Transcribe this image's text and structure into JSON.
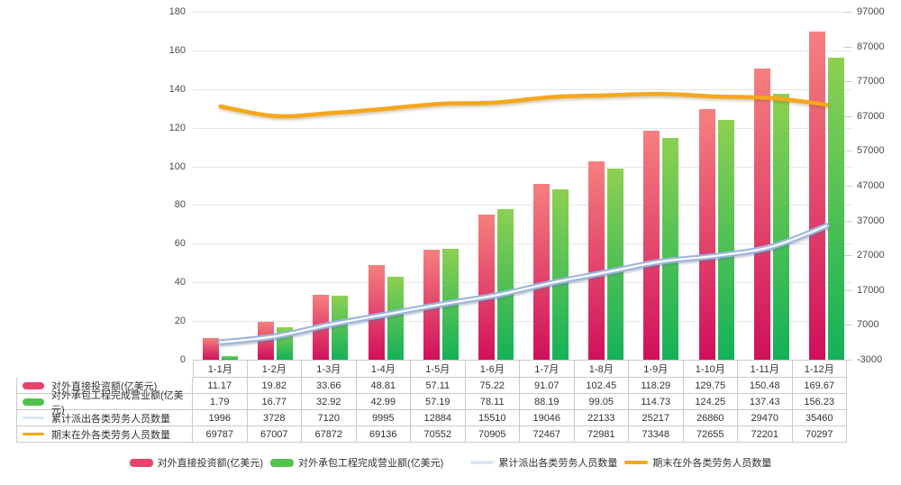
{
  "chart_data": {
    "type": "combo-bar-line",
    "categories": [
      "1-1月",
      "1-2月",
      "1-3月",
      "1-4月",
      "1-5月",
      "1-6月",
      "1-7月",
      "1-8月",
      "1-9月",
      "1-10月",
      "1-11月",
      "1-12月"
    ],
    "series": [
      {
        "name": "对外直接投资额(亿美元)",
        "type": "bar",
        "axis": "left",
        "decimals": 2,
        "values": [
          11.17,
          19.82,
          33.66,
          48.81,
          57.11,
          75.22,
          91.07,
          102.45,
          118.29,
          129.75,
          150.48,
          169.67
        ],
        "color_top": "#f5807f",
        "color_bottom": "#d0105a",
        "swatch": "#e8426d",
        "dataname": "direct-investment-bar"
      },
      {
        "name": "对外承包工程完成营业额(亿美元)",
        "type": "bar",
        "axis": "left",
        "decimals": 2,
        "values": [
          1.79,
          16.77,
          32.92,
          42.99,
          57.19,
          78.11,
          88.19,
          99.05,
          114.73,
          124.25,
          137.43,
          156.23
        ],
        "color_top": "#8ed052",
        "color_bottom": "#14b158",
        "swatch": "#52c24f",
        "dataname": "contract-revenue-bar"
      },
      {
        "name": "累计派出各类劳务人员数量",
        "type": "line",
        "axis": "right",
        "decimals": 0,
        "values": [
          1996,
          3728,
          7120,
          9995,
          12884,
          15510,
          19046,
          22133,
          25217,
          26860,
          29470,
          35460
        ],
        "color": "#9cb6e0",
        "core": "#ffffff",
        "swatch": "#dbe6f6",
        "dataname": "dispatched-workers-line"
      },
      {
        "name": "期末在外各类劳务人员数量",
        "type": "line",
        "axis": "right",
        "decimals": 0,
        "values": [
          69787,
          67007,
          67872,
          69136,
          70552,
          70905,
          72467,
          72981,
          73348,
          72655,
          72201,
          70297
        ],
        "color": "#f6a71b",
        "swatch": "#f6a71b",
        "dataname": "overseas-workers-line"
      }
    ],
    "left_axis": {
      "min": 0,
      "max": 180,
      "step": 20
    },
    "right_axis": {
      "min": -3000,
      "max": 97000,
      "step": 10000
    },
    "grid": true,
    "legend_position": "bottom"
  },
  "colors": {
    "grid": "#e7e7e7",
    "axis_line": "#c9c9c9",
    "axis_text": "#4a4a4a",
    "table_border": "#c9c9c9",
    "text": "#333333"
  }
}
